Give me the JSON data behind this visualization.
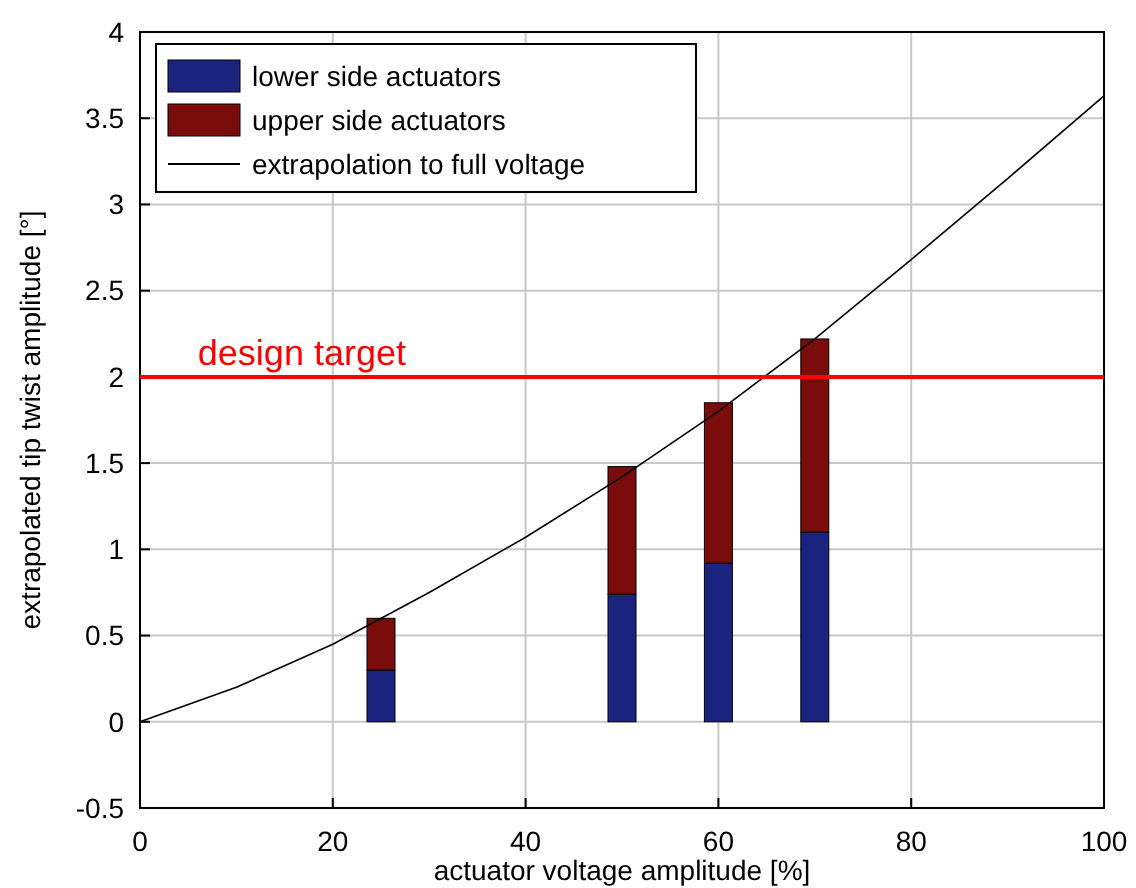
{
  "chart_data": {
    "type": "bar",
    "stacked": true,
    "x": [
      25,
      50,
      60,
      70
    ],
    "xlabel": "actuator voltage amplitude [%]",
    "ylabel": "extrapolated tip twist amplitude [°]",
    "xlim": [
      0,
      100
    ],
    "xticks": [
      0,
      20,
      40,
      60,
      80,
      100
    ],
    "ylim": [
      -0.5,
      4
    ],
    "yticks": [
      -0.5,
      0,
      0.5,
      1,
      1.5,
      2,
      2.5,
      3,
      3.5,
      4
    ],
    "grid": true,
    "legend": "top left",
    "series": [
      {
        "name": "lower side actuators",
        "color": "#1a237e",
        "values": [
          0.3,
          0.74,
          0.92,
          1.1
        ]
      },
      {
        "name": "upper side actuators",
        "color": "#7b0c0c",
        "values": [
          0.3,
          0.74,
          0.93,
          1.12
        ]
      },
      {
        "name": "extrapolation to full voltage",
        "type": "line",
        "color": "#000000",
        "x": [
          0,
          10,
          20,
          30,
          40,
          50,
          60,
          70,
          80,
          90,
          100
        ],
        "values": [
          0,
          0.2,
          0.45,
          0.75,
          1.07,
          1.42,
          1.8,
          2.22,
          2.68,
          3.15,
          3.63
        ]
      }
    ],
    "ref_lines": [
      {
        "axis": "y",
        "value": 2,
        "label": "design target",
        "color": "#ff0000"
      }
    ]
  }
}
